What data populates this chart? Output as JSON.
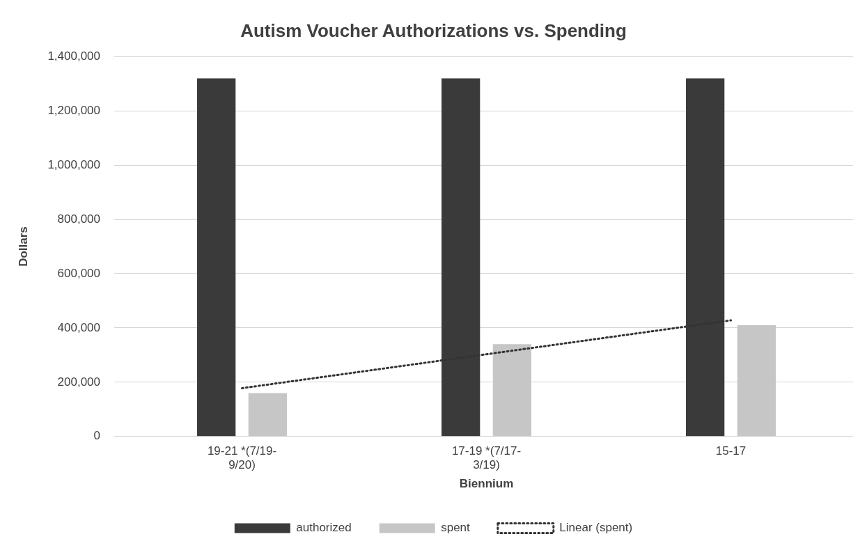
{
  "chart_data": {
    "type": "bar",
    "title": "Autism Voucher Authorizations vs. Spending",
    "xlabel": "Biennium",
    "ylabel": "Dollars",
    "categories": [
      "19-21 *(7/19-9/20)",
      "17-19 *(7/17-3/19)",
      "15-17"
    ],
    "series": [
      {
        "name": "authorized",
        "color": "#3a3a3a",
        "values": [
          1320000,
          1320000,
          1320000
        ]
      },
      {
        "name": "spent",
        "color": "#c6c6c6",
        "values": [
          160000,
          340000,
          410000
        ]
      },
      {
        "name": "Linear (spent)",
        "type": "line",
        "color": "#333333",
        "line_style": "dotted",
        "values": [
          178000,
          303000,
          428000
        ]
      }
    ],
    "ylim": [
      0,
      1400000
    ],
    "yticks": [
      0,
      {
        "value": 200000,
        "label": "200,000"
      },
      {
        "value": 400000,
        "label": "400,000"
      },
      {
        "value": 600000,
        "label": "600,000"
      },
      {
        "value": 800000,
        "label": "800,000"
      },
      {
        "value": 1000000,
        "label": "1,000,000"
      },
      {
        "value": 1200000,
        "label": "1,200,000"
      },
      {
        "value": 1400000,
        "label": "1,400,000"
      }
    ],
    "grid": "y",
    "legend": "bottom"
  }
}
